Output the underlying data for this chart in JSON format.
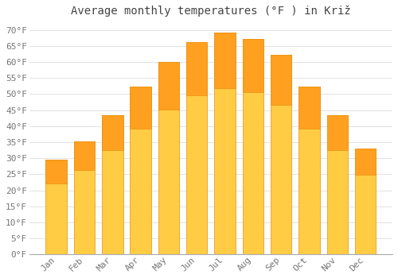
{
  "title": "Average monthly temperatures (°F ) in Križ",
  "months": [
    "Jan",
    "Feb",
    "Mar",
    "Apr",
    "May",
    "Jun",
    "Jul",
    "Aug",
    "Sep",
    "Oct",
    "Nov",
    "Dec"
  ],
  "values": [
    29.5,
    35.2,
    43.3,
    52.3,
    60.1,
    66.2,
    69.1,
    67.3,
    62.2,
    52.3,
    43.3,
    33.1
  ],
  "bar_color_top": "#FFA020",
  "bar_color_bottom": "#FFCC44",
  "bar_edge_color": "#E89010",
  "background_color": "#FFFFFF",
  "grid_color": "#DDDDDD",
  "ylim": [
    0,
    72
  ],
  "yticks": [
    0,
    5,
    10,
    15,
    20,
    25,
    30,
    35,
    40,
    45,
    50,
    55,
    60,
    65,
    70
  ],
  "title_fontsize": 10,
  "tick_fontsize": 8,
  "title_color": "#444444",
  "tick_color": "#777777",
  "bar_width": 0.75
}
